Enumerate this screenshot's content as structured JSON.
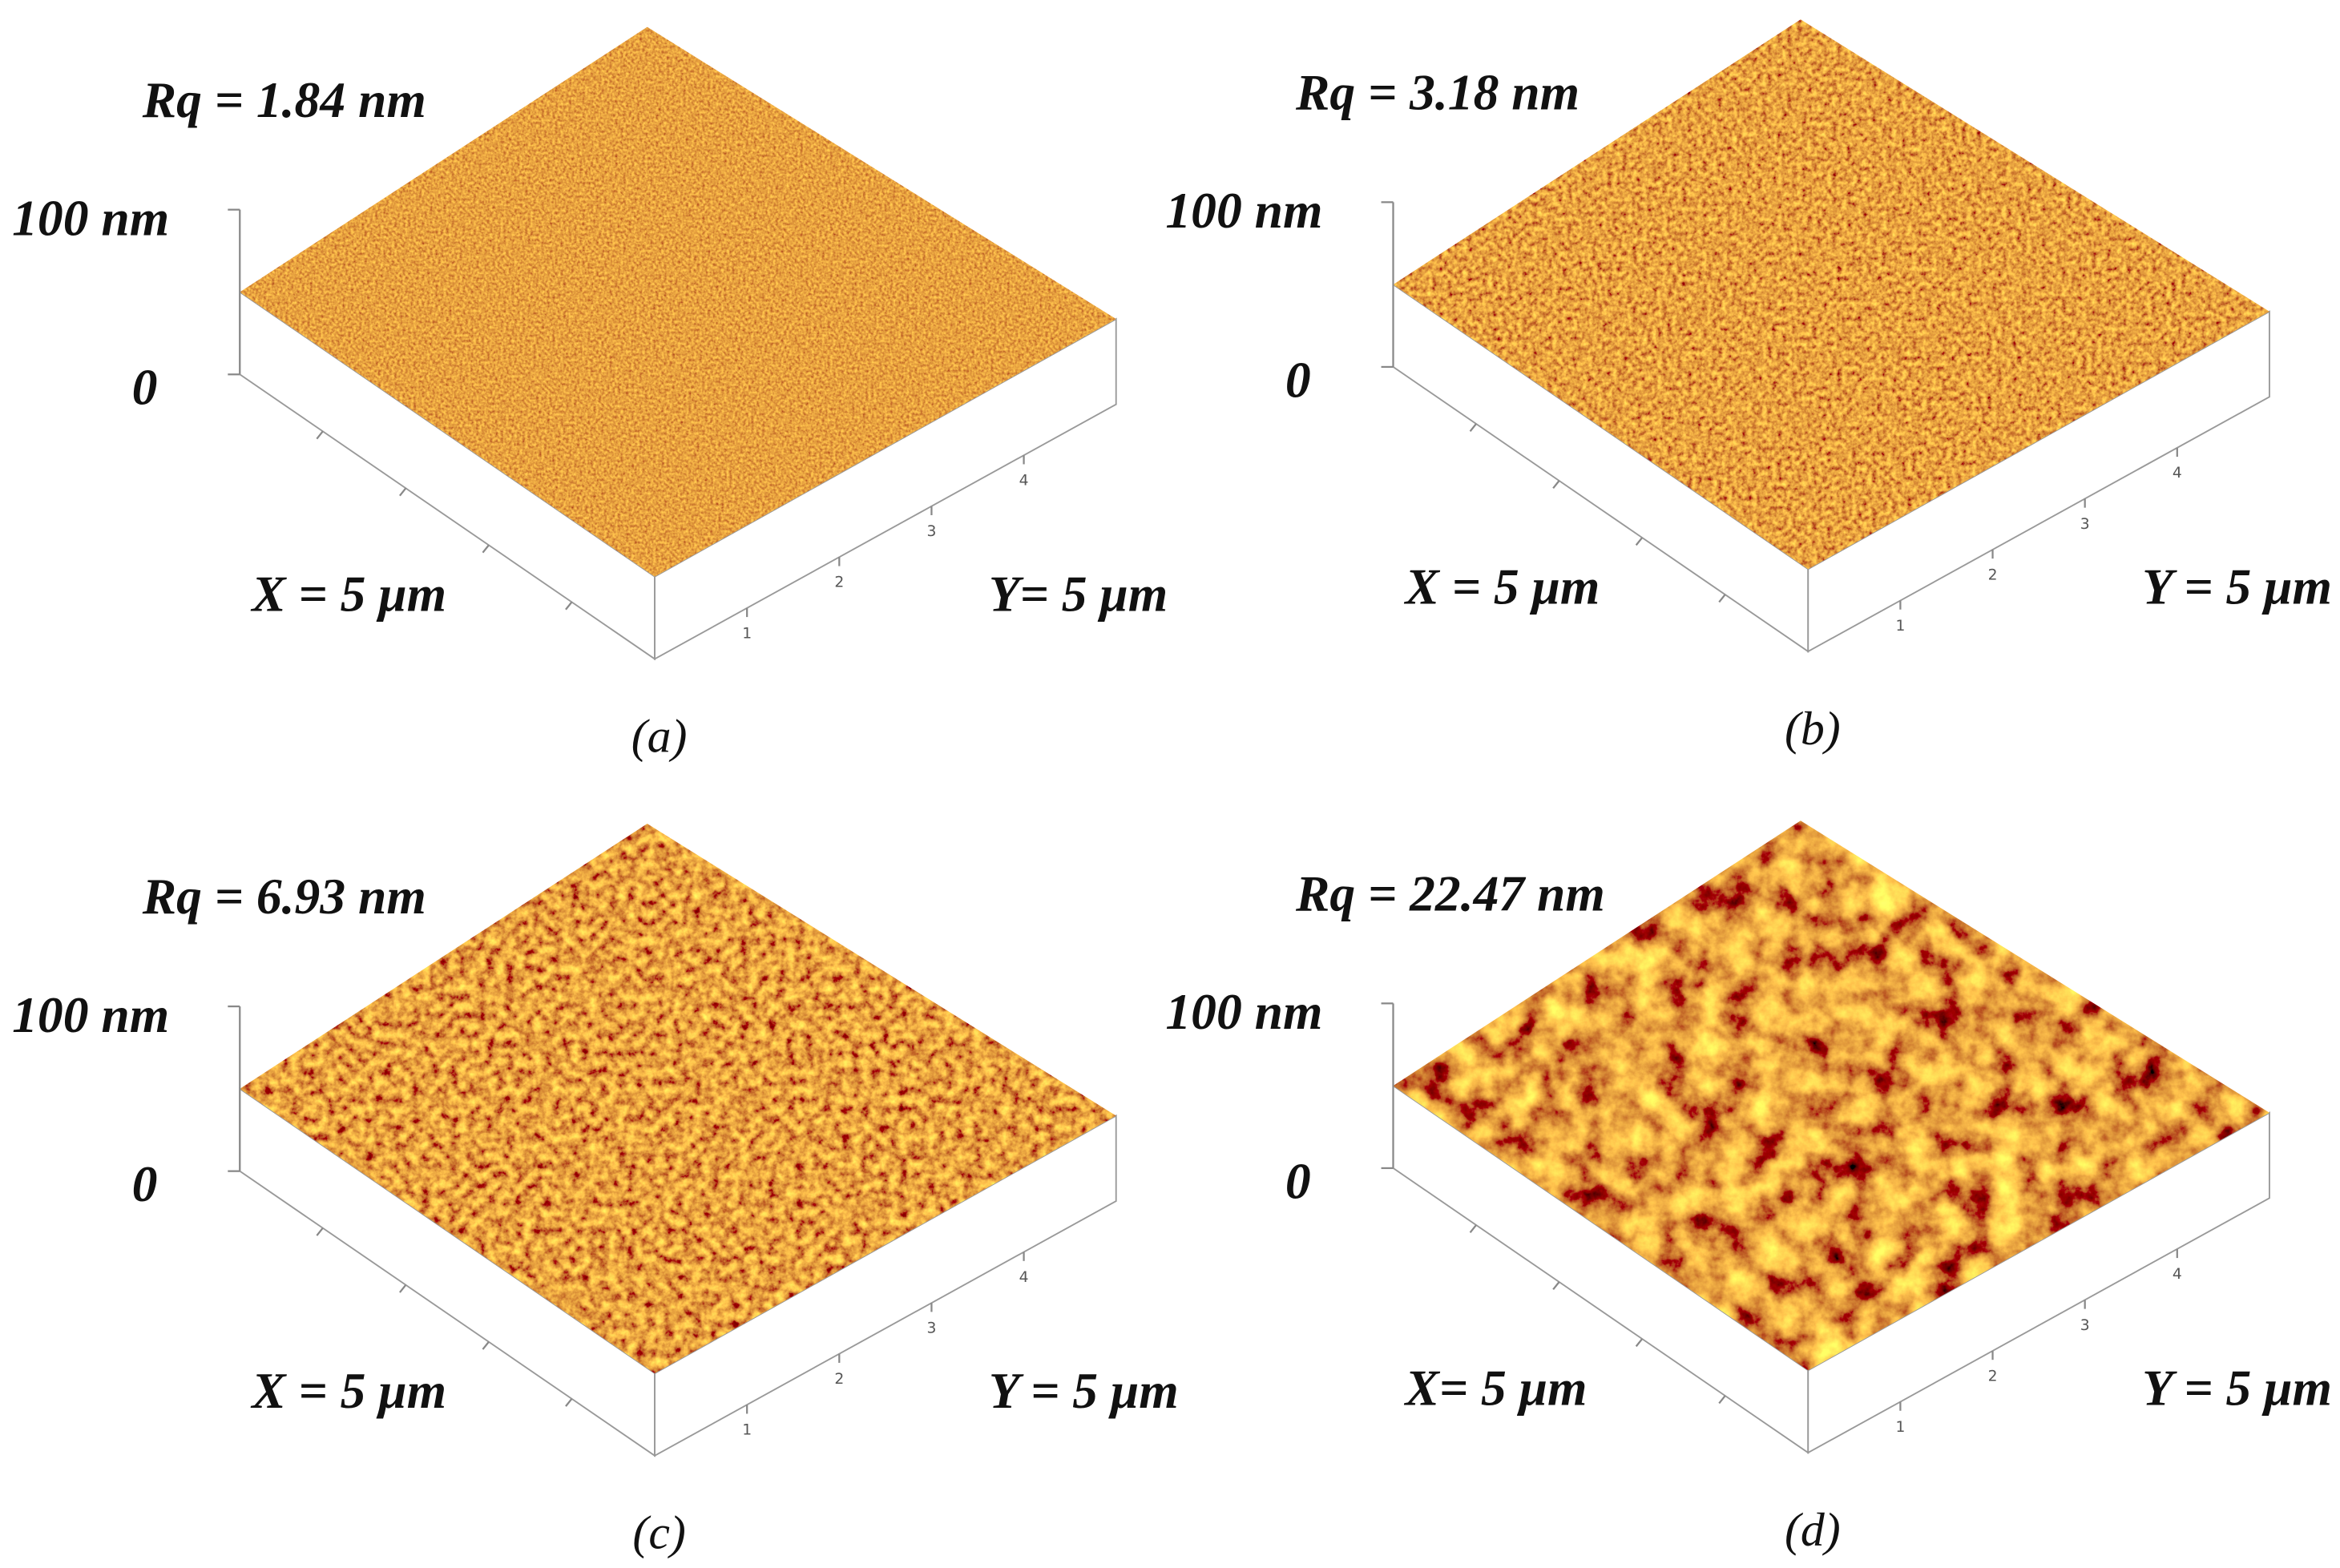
{
  "panels": [
    {
      "rq": "Rq = 1.84 nm",
      "z_max": "100 nm",
      "z_min": "0",
      "x_label": "X = 5 μm",
      "y_label": "Y= 5 μm",
      "y_ticks": [
        "1",
        "2",
        "3",
        "4"
      ],
      "caption": "(a)"
    },
    {
      "rq": "Rq = 3.18 nm",
      "z_max": "100 nm",
      "z_min": "0",
      "x_label": "X = 5 μm",
      "y_label": "Y = 5 μm",
      "y_ticks": [
        "1",
        "2",
        "3",
        "4"
      ],
      "caption": "(b)"
    },
    {
      "rq": "Rq = 6.93 nm",
      "z_max": "100 nm",
      "z_min": "0",
      "x_label": "X = 5 μm",
      "y_label": "Y = 5 μm",
      "y_ticks": [
        "1",
        "2",
        "3",
        "4"
      ],
      "caption": "(c)"
    },
    {
      "rq": "Rq = 22.47 nm",
      "z_max": "100 nm",
      "z_min": "0",
      "x_label": "X= 5 μm",
      "y_label": "Y = 5 μm",
      "y_ticks": [
        "1",
        "2",
        "3",
        "4"
      ],
      "caption": "(d)"
    }
  ]
}
